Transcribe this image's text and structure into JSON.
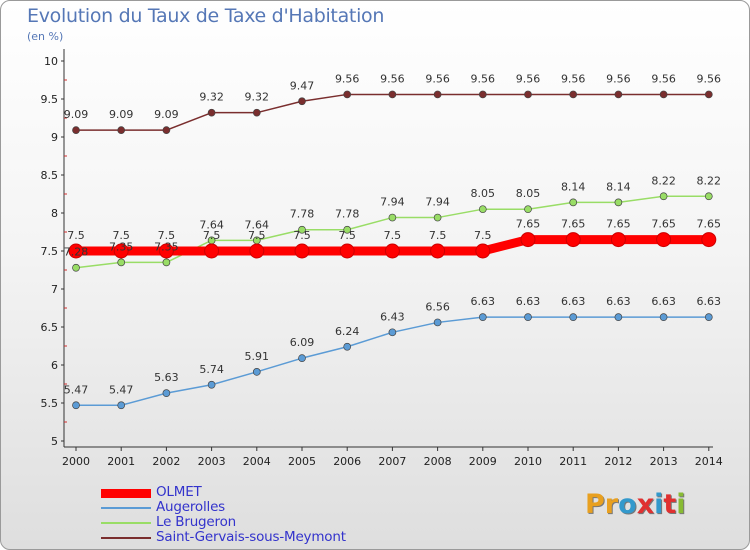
{
  "header": {
    "title": "Evolution du Taux de Taxe d'Habitation",
    "subtitle": "(en %)"
  },
  "logo": {
    "text": "Proxiti",
    "letter_colors": [
      "#e8a020",
      "#e8a020",
      "#3399cc",
      "#e03030",
      "#3399cc",
      "#e03030",
      "#88bb33"
    ]
  },
  "chart_data": {
    "type": "line",
    "x": [
      "2000",
      "2001",
      "2002",
      "2003",
      "2004",
      "2005",
      "2006",
      "2007",
      "2008",
      "2009",
      "2010",
      "2011",
      "2012",
      "2013",
      "2014"
    ],
    "ylim": [
      5,
      10
    ],
    "yticks": [
      "5",
      "5.5",
      "6",
      "6.5",
      "7",
      "7.5",
      "8",
      "8.5",
      "9",
      "9.5",
      "10"
    ],
    "grid": false,
    "legend_position": "bottom-left",
    "series": [
      {
        "name": "OLMET",
        "color": "#ff0000",
        "values": [
          7.5,
          7.5,
          7.5,
          7.5,
          7.5,
          7.5,
          7.5,
          7.5,
          7.5,
          7.5,
          7.65,
          7.65,
          7.65,
          7.65,
          7.65
        ],
        "labels": [
          "7.5",
          "7.5",
          "7.5",
          "7.5",
          "7.5",
          "7.5",
          "7.5",
          "7.5",
          "7.5",
          "7.5",
          "7.65",
          "7.65",
          "7.65",
          "7.65",
          "7.65"
        ]
      },
      {
        "name": "Augerolles",
        "color": "#5b9bd5",
        "values": [
          5.47,
          5.47,
          5.63,
          5.74,
          5.91,
          6.09,
          6.24,
          6.43,
          6.56,
          6.63,
          6.63,
          6.63,
          6.63,
          6.63,
          6.63
        ],
        "labels": [
          "5.47",
          "5.47",
          "5.63",
          "5.74",
          "5.91",
          "6.09",
          "6.24",
          "6.43",
          "6.56",
          "6.63",
          "6.63",
          "6.63",
          "6.63",
          "6.63",
          "6.63"
        ]
      },
      {
        "name": "Le Brugeron",
        "color": "#99dd66",
        "values": [
          7.28,
          7.35,
          7.35,
          7.64,
          7.64,
          7.78,
          7.78,
          7.94,
          7.94,
          8.05,
          8.05,
          8.14,
          8.14,
          8.22,
          8.22
        ],
        "labels": [
          "7.28",
          "7.35",
          "7.35",
          "7.64",
          "7.64",
          "7.78",
          "7.78",
          "7.94",
          "7.94",
          "8.05",
          "8.05",
          "8.14",
          "8.14",
          "8.22",
          "8.22"
        ]
      },
      {
        "name": "Saint-Gervais-sous-Meymont",
        "color": "#7a2e2e",
        "values": [
          9.09,
          9.09,
          9.09,
          9.32,
          9.32,
          9.47,
          9.56,
          9.56,
          9.56,
          9.56,
          9.56,
          9.56,
          9.56,
          9.56,
          9.56
        ],
        "labels": [
          "9.09",
          "9.09",
          "9.09",
          "9.32",
          "9.32",
          "9.47",
          "9.56",
          "9.56",
          "9.56",
          "9.56",
          "9.56",
          "9.56",
          "9.56",
          "9.56",
          "9.56"
        ]
      }
    ]
  }
}
